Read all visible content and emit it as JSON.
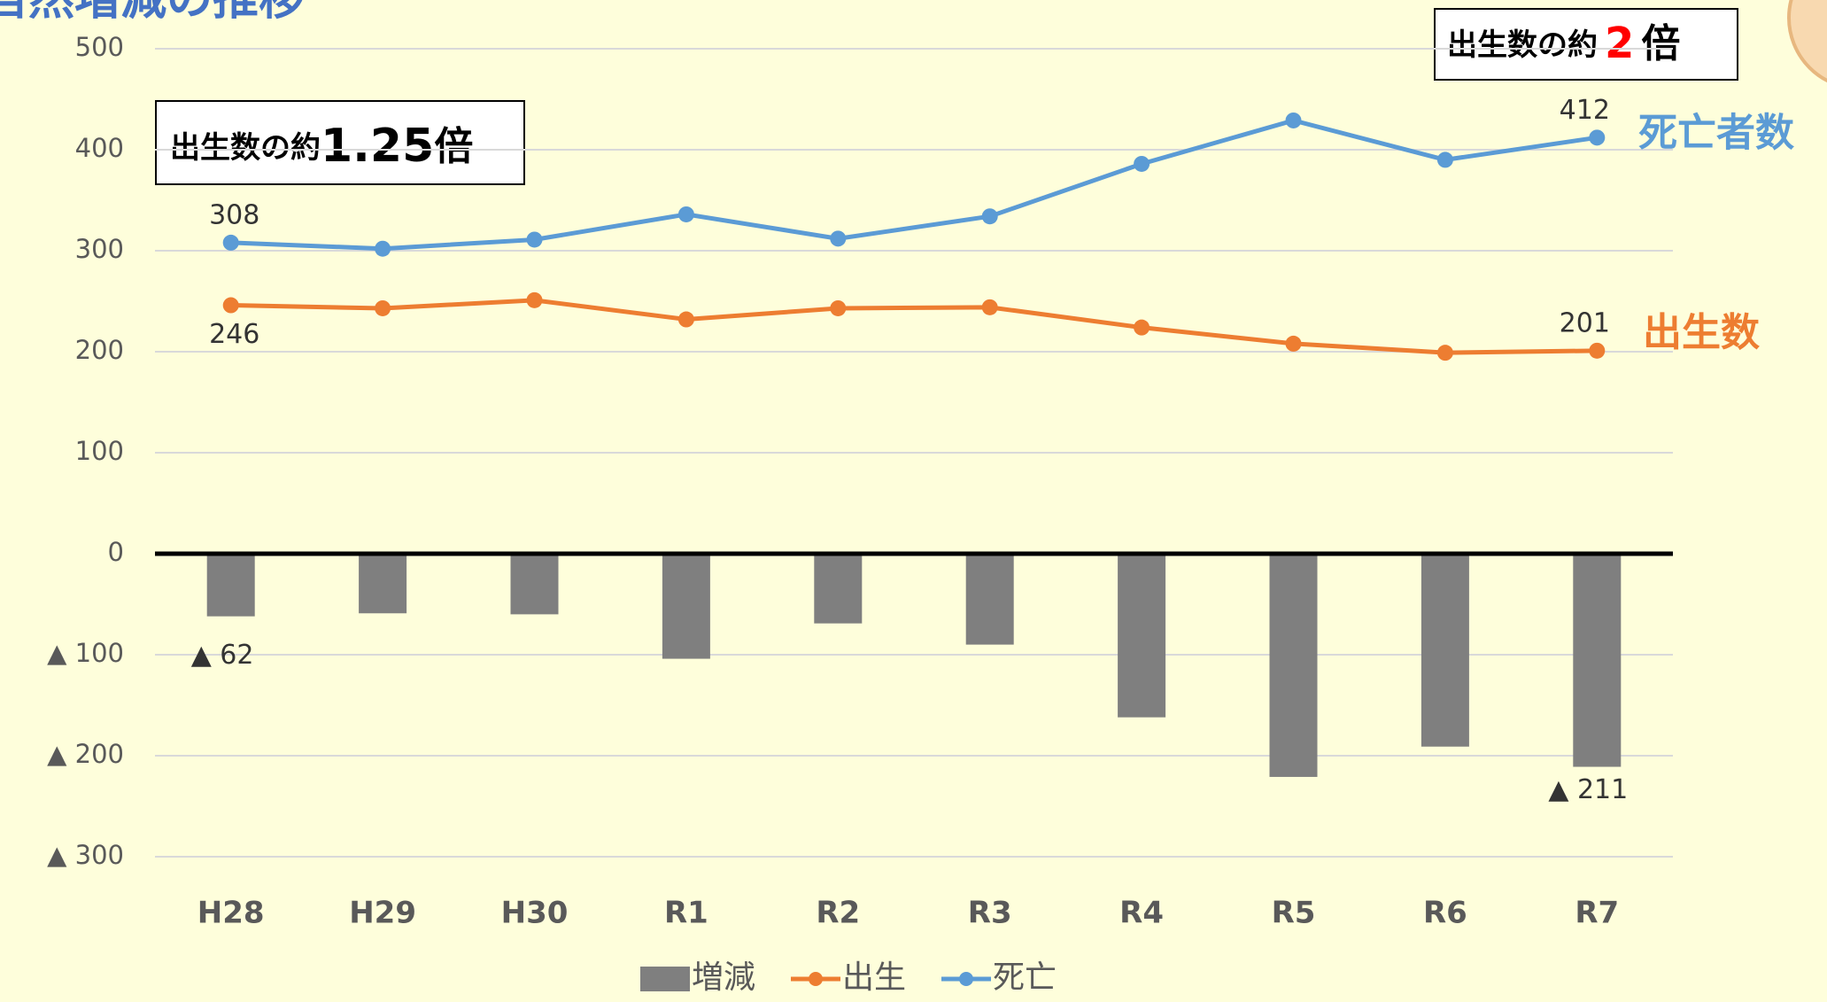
{
  "chart_data": {
    "type": "combo",
    "title": "自然増減の推移",
    "categories": [
      "H28",
      "H29",
      "H30",
      "R1",
      "R2",
      "R3",
      "R4",
      "R5",
      "R6",
      "R7"
    ],
    "series": [
      {
        "name": "増減",
        "type": "bar",
        "color": "#7f7f7f",
        "values": [
          -62,
          -59,
          -60,
          -104,
          -69,
          -90,
          -162,
          -221,
          -191,
          -211
        ],
        "value_labels": [
          "▲ 62",
          null,
          null,
          null,
          null,
          null,
          null,
          null,
          null,
          "▲ 211"
        ]
      },
      {
        "name": "出生",
        "type": "line",
        "color": "#ed7d31",
        "values": [
          246,
          243,
          251,
          232,
          243,
          244,
          224,
          208,
          199,
          201
        ],
        "value_labels": [
          "246",
          null,
          null,
          null,
          null,
          null,
          null,
          null,
          null,
          "201"
        ],
        "end_label": "出生数"
      },
      {
        "name": "死亡",
        "type": "line",
        "color": "#5b9bd5",
        "values": [
          308,
          302,
          311,
          336,
          312,
          334,
          386,
          429,
          390,
          412
        ],
        "value_labels": [
          "308",
          null,
          null,
          null,
          null,
          null,
          null,
          null,
          null,
          "412"
        ],
        "end_label": "死亡者数"
      }
    ],
    "ylim": [
      -300,
      500
    ],
    "yticks": [
      {
        "value": -300,
        "label": "▲ 300"
      },
      {
        "value": -200,
        "label": "▲ 200"
      },
      {
        "value": -100,
        "label": "▲ 100"
      },
      0,
      100,
      200,
      300,
      400,
      500
    ],
    "grid": true,
    "annotations": [
      {
        "parts": [
          "出生数の約",
          "1.25",
          "倍"
        ]
      },
      {
        "parts": [
          "出生数の約",
          "2",
          "倍"
        ],
        "highlight_color": "#ff0000"
      }
    ],
    "legend": "bottom"
  }
}
